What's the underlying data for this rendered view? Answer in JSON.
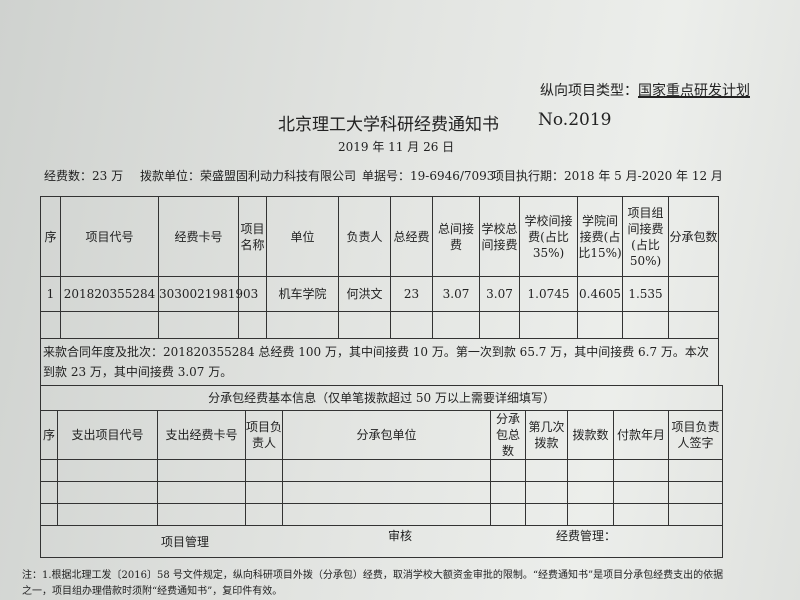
{
  "header": {
    "project_type_label": "纵向项目类型：",
    "project_type_value": "国家重点研发计划",
    "title": "北京理工大学科研经费通知书",
    "number": "No.2019",
    "date": "2019 年 11 月 26 日",
    "funds": "经费数：23 万",
    "payer": "拨款单位：荣盛盟固利动力科技有限公司",
    "voucher": "单据号：19-6946/7093",
    "period": "项目执行期：2018 年 5 月-2020 年 12 月"
  },
  "main_table": {
    "headers": [
      "序",
      "项目代号",
      "经费卡号",
      "项目名称",
      "单位",
      "负责人",
      "总经费",
      "总间接费",
      "学校总间接费",
      "学校间接费(占比 35%)",
      "学院间接费(占比15%)",
      "项目组间接费(占比50%)",
      "分承包数"
    ],
    "rows": [
      [
        "1",
        "201820355284",
        "3030021981903",
        "",
        "机车学院",
        "何洪文",
        "23",
        "3.07",
        "3.07",
        "1.0745",
        "0.4605",
        "1.535",
        ""
      ]
    ],
    "note": "来款合同年度及批次：201820355284 总经费 100 万，其中间接费 10 万。第一次到款 65.7 万，其中间接费 6.7 万。本次到款 23 万，其中间接费 3.07 万。"
  },
  "sub_table": {
    "title": "分承包经费基本信息（仅单笔拨款超过 50 万以上需要详细填写）",
    "headers": [
      "序",
      "支出项目代号",
      "支出经费卡号",
      "项目负责人",
      "分承包单位",
      "分承包总数",
      "第几次拨款",
      "拨款数",
      "付款年月",
      "项目负责人签字"
    ],
    "sign_project": "项目管理",
    "sign_review": "审核",
    "sign_finance": "经费管理："
  },
  "footnote": {
    "line1": "注：1.根据北理工发〔2016〕58 号文件规定，纵向科研项目外拨（分承包）经费，取消学校大额资金审批的限制。“经费通知书”是项目分承包经费支出的依据",
    "line2": "之一，项目组办理借款时须附“经费通知书”，复印件有效。"
  }
}
